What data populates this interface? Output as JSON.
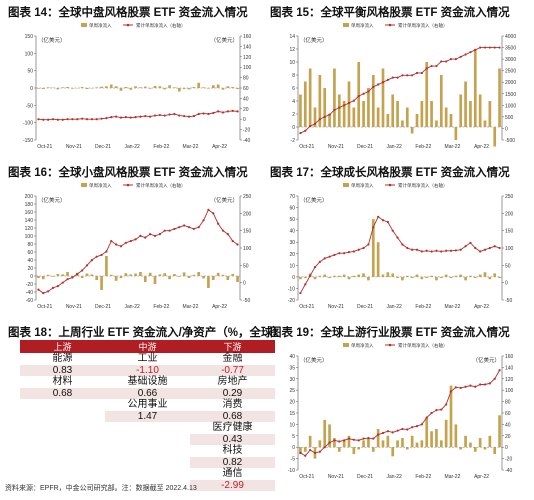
{
  "colors": {
    "bar": "#c4a24e",
    "line": "#b5302c",
    "axis": "#555555",
    "header": "#b01e24",
    "negative": "#c01f25"
  },
  "charts": [
    {
      "id": "c14",
      "title": "图表 14：全球中盘风格股票 ETF 资金流入情况",
      "legend": {
        "bar": "单周净流入",
        "line": "累计单周净流入（右轴）"
      },
      "left_unit": "（亿美元）",
      "right_unit": "（亿美元）",
      "left_axis": {
        "min": -150,
        "max": 150,
        "step": 50
      },
      "right_axis": {
        "min": -40,
        "max": 160,
        "step": 20
      },
      "x_labels": [
        "Oct-21",
        "Nov-21",
        "Dec-21",
        "Jan-22",
        "Feb-22",
        "Mar-22",
        "Apr-22"
      ],
      "bars": [
        -2,
        -3,
        2,
        1,
        -4,
        2,
        3,
        -2,
        -1,
        3,
        -3,
        -1,
        2,
        4,
        5,
        10,
        5,
        -8,
        3,
        -5,
        5,
        2,
        4,
        -2,
        6,
        5,
        -4,
        8,
        2,
        -10,
        -3,
        -4,
        3,
        15,
        2,
        -2,
        8,
        10,
        -5,
        5,
        3,
        -3
      ],
      "line": [
        0,
        -1,
        -1,
        0,
        -1,
        -1,
        0,
        0,
        0,
        1,
        0,
        0,
        0,
        1,
        2,
        4,
        5,
        3,
        4,
        3,
        4,
        5,
        6,
        5,
        7,
        8,
        7,
        9,
        10,
        7,
        6,
        5,
        6,
        10,
        11,
        10,
        12,
        15,
        13,
        15,
        16,
        15
      ]
    },
    {
      "id": "c15",
      "title": "图表 15：全球平衡风格股票 ETF 资金流入情况",
      "legend": {
        "bar": "单周净流入",
        "line": "累计单周净流入（右轴）"
      },
      "left_unit": "（亿美元）",
      "right_unit": "",
      "left_axis": {
        "min": -2,
        "max": 14,
        "step": 2
      },
      "right_axis": {
        "min": -500,
        "max": 4000,
        "step": 500
      },
      "x_labels": [
        "Oct-21",
        "Nov-21",
        "Dec-21",
        "Jan-22",
        "Feb-22",
        "Mar-22",
        "Apr-22"
      ],
      "bars": [
        5,
        7,
        9,
        3,
        8,
        6,
        2,
        9,
        5,
        4,
        7,
        3,
        10,
        4,
        6,
        8,
        3,
        9,
        2,
        5,
        4,
        1,
        3,
        -1,
        2,
        4,
        10,
        4,
        1,
        8,
        3,
        2,
        -2,
        5,
        7,
        4,
        12,
        5,
        1,
        4,
        -3,
        9
      ],
      "line": [
        -200,
        -100,
        100,
        200,
        400,
        500,
        600,
        800,
        900,
        1000,
        1100,
        1200,
        1400,
        1500,
        1600,
        1800,
        1900,
        2000,
        2100,
        2200,
        2200,
        2300,
        2300,
        2300,
        2400,
        2400,
        2600,
        2700,
        2700,
        2900,
        2900,
        3000,
        3000,
        3100,
        3200,
        3300,
        3400,
        3500,
        3500,
        3500,
        3500,
        3500
      ]
    },
    {
      "id": "c16",
      "title": "图表 16：全球小盘风格股票 ETF 资金流入情况",
      "legend": {
        "bar": "单周净流入",
        "line": "累计单周净流入（右轴）"
      },
      "left_unit": "（亿美元）",
      "right_unit": "（亿美元）",
      "left_axis": {
        "min": -60,
        "max": 200,
        "step": 20
      },
      "right_axis": {
        "min": -50,
        "max": 250,
        "step": 50
      },
      "x_labels": [
        "Oct-21",
        "Nov-21",
        "Dec-21",
        "Jan-22",
        "Feb-22",
        "Mar-22",
        "Apr-22"
      ],
      "bars": [
        -5,
        -8,
        3,
        -2,
        5,
        4,
        10,
        -3,
        8,
        -5,
        6,
        4,
        -10,
        -35,
        50,
        3,
        -12,
        -5,
        7,
        4,
        6,
        10,
        -15,
        8,
        -20,
        4,
        7,
        -8,
        5,
        -2,
        9,
        -5,
        3,
        10,
        -6,
        -30,
        -10,
        8,
        3,
        -10,
        5,
        -15
      ],
      "line": [
        -20,
        -30,
        -25,
        -15,
        -10,
        0,
        10,
        15,
        25,
        35,
        50,
        65,
        75,
        80,
        90,
        120,
        110,
        105,
        115,
        120,
        125,
        135,
        130,
        140,
        135,
        140,
        150,
        150,
        155,
        160,
        165,
        160,
        155,
        160,
        180,
        210,
        200,
        170,
        150,
        140,
        120,
        110
      ]
    },
    {
      "id": "c17",
      "title": "图表 17：全球成长风格股票 ETF 资金流入情况",
      "legend": {
        "bar": "单周净流入",
        "line": "累计单周净流入（右轴）"
      },
      "left_unit": "（亿美元）",
      "right_unit": "",
      "left_axis": {
        "min": -20,
        "max": 70,
        "step": 10
      },
      "right_axis": {
        "min": -50,
        "max": 250,
        "step": 50
      },
      "x_labels": [
        "Oct-21",
        "Nov-21",
        "Dec-21",
        "Jan-22",
        "Feb-22",
        "Mar-22",
        "Apr-22"
      ],
      "bars": [
        -2,
        -1,
        3,
        -2,
        1,
        2,
        -1,
        1,
        1,
        2,
        -2,
        1,
        2,
        3,
        -3,
        50,
        30,
        2,
        4,
        3,
        -1,
        -3,
        1,
        -1,
        2,
        -2,
        -1,
        1,
        -3,
        -1,
        2,
        -1,
        1,
        2,
        -3,
        1,
        -1,
        2,
        4,
        -2,
        3,
        -1
      ],
      "line": [
        -30,
        -5,
        20,
        45,
        60,
        70,
        75,
        80,
        85,
        85,
        88,
        90,
        95,
        100,
        110,
        160,
        190,
        180,
        175,
        150,
        130,
        110,
        100,
        95,
        95,
        90,
        92,
        90,
        92,
        90,
        92,
        92,
        93,
        95,
        105,
        115,
        100,
        90,
        95,
        100,
        105,
        100
      ]
    },
    {
      "id": "c19",
      "title": "图表 19：全球上游行业股票 ETF 资金流入情况",
      "legend": {
        "bar": "单周净流入",
        "line": "累计单周净流入（右轴）"
      },
      "left_unit": "（亿美元）",
      "right_unit": "（亿美元）",
      "left_axis": {
        "min": -10,
        "max": 40,
        "step": 5
      },
      "right_axis": {
        "min": -40,
        "max": 160,
        "step": 20
      },
      "x_labels": [
        "Oct-21",
        "Nov-21",
        "Dec-21",
        "Jan-22",
        "Feb-22",
        "Mar-22",
        "Apr-22"
      ],
      "bars": [
        -3,
        -2,
        5,
        -5,
        3,
        12,
        10,
        4,
        -2,
        3,
        5,
        -3,
        -1,
        3,
        4,
        -2,
        8,
        3,
        5,
        -4,
        3,
        4,
        -1,
        5,
        2,
        3,
        13,
        7,
        8,
        3,
        12,
        27,
        10,
        -1,
        5,
        2,
        -2,
        4,
        -1,
        5,
        -3,
        14
      ],
      "line": [
        -10,
        -15,
        -5,
        -10,
        -8,
        0,
        8,
        12,
        10,
        12,
        15,
        13,
        12,
        15,
        16,
        15,
        22,
        25,
        28,
        26,
        29,
        32,
        31,
        35,
        37,
        40,
        52,
        60,
        65,
        66,
        75,
        98,
        105,
        104,
        106,
        108,
        106,
        110,
        110,
        112,
        120,
        135
      ]
    }
  ],
  "table": {
    "title": "图表 18：上周行业 ETF 资金流入/净资产（%，全球）",
    "headers": [
      "上游",
      "中游",
      "下游"
    ],
    "rows": [
      [
        {
          "t": "能源"
        },
        {
          "t": "工业"
        },
        {
          "t": "金融"
        }
      ],
      [
        {
          "t": "0.83"
        },
        {
          "t": "-1.10",
          "neg": true
        },
        {
          "t": "-0.77",
          "neg": true
        }
      ],
      [
        {
          "t": "材料"
        },
        {
          "t": "基础设施"
        },
        {
          "t": "房地产"
        }
      ],
      [
        {
          "t": "0.68"
        },
        {
          "t": "0.66"
        },
        {
          "t": "0.29"
        }
      ],
      [
        {
          "t": ""
        },
        {
          "t": "公用事业"
        },
        {
          "t": "消费"
        }
      ],
      [
        {
          "t": ""
        },
        {
          "t": "1.47"
        },
        {
          "t": "0.68"
        }
      ],
      [
        {
          "t": ""
        },
        {
          "t": ""
        },
        {
          "t": "医疗健康"
        }
      ],
      [
        {
          "t": ""
        },
        {
          "t": ""
        },
        {
          "t": "0.43"
        }
      ],
      [
        {
          "t": ""
        },
        {
          "t": ""
        },
        {
          "t": "科技"
        }
      ],
      [
        {
          "t": ""
        },
        {
          "t": ""
        },
        {
          "t": "0.82"
        }
      ],
      [
        {
          "t": ""
        },
        {
          "t": ""
        },
        {
          "t": "通信"
        }
      ],
      [
        {
          "t": ""
        },
        {
          "t": ""
        },
        {
          "t": "-2.99",
          "neg": true
        }
      ]
    ]
  },
  "footnote": "资料来源：EPFR，中金公司研究部。注：数据截至 2022.4.13"
}
